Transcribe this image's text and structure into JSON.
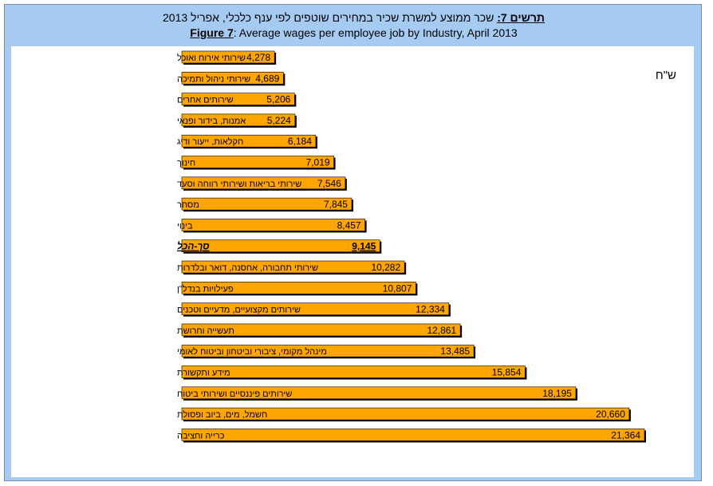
{
  "title": {
    "he_lead": "תרשים 7:",
    "he_text": " שכר ממוצע למשרת שכיר במחירים שוטפים לפי ענף כלכלי, אפריל 2013",
    "en_lead": "Figure 7",
    "en_text": ": Average wages per employee job by Industry, April 2013"
  },
  "unit_label": "ש\"ח",
  "colors": {
    "frame": "#a6cbf3",
    "bar": "#ffa500",
    "bar_shadow": "#000000"
  },
  "chart_data": {
    "type": "bar",
    "orientation": "horizontal",
    "title": "Average wages per employee job by Industry, April 2013",
    "xlabel": "",
    "ylabel": "",
    "unit": "ש\"ח",
    "xlim": [
      0,
      22000
    ],
    "grid": false,
    "categories": [
      "שירותי אירוח ואוכל",
      "שירותי ניהול ותמיכה",
      "שירותים אחרים",
      "אמנות, בידור ופנאי",
      "חקלאות, ייעור ודיג",
      "חינוך",
      "שירותי בריאות ושירותי רווחה וסעד",
      "מסחר",
      "בינוי",
      "סך-הכל",
      "שירותי תחבורה, אחסנה, דואר ובלדרות",
      "פעילויות בנדל\"ן",
      "שירותים מקצועיים, מדעיים וטכנים",
      "תעשייה וחרושת",
      "מינהל מקומי, ציבורי וביטחון וביטוח לאומי",
      "מידע ותקשורת",
      "שירותים פיננסיים ושירותי ביטוח",
      "חשמל, מים, ביוב ופסולת",
      "כרייה וחציבה"
    ],
    "values": [
      4278,
      4689,
      5206,
      5224,
      6184,
      7019,
      7546,
      7845,
      8457,
      9145,
      10282,
      10807,
      12334,
      12861,
      13485,
      15854,
      18195,
      20660,
      21364
    ],
    "value_labels": [
      "4,278",
      "4,689",
      "5,206",
      "5,224",
      "6,184",
      "7,019",
      "7,546",
      "7,845",
      "8,457",
      "9,145",
      "10,282",
      "10,807",
      "12,334",
      "12,861",
      "13,485",
      "15,854",
      "18,195",
      "20,660",
      "21,364"
    ],
    "highlight_index": 9
  }
}
